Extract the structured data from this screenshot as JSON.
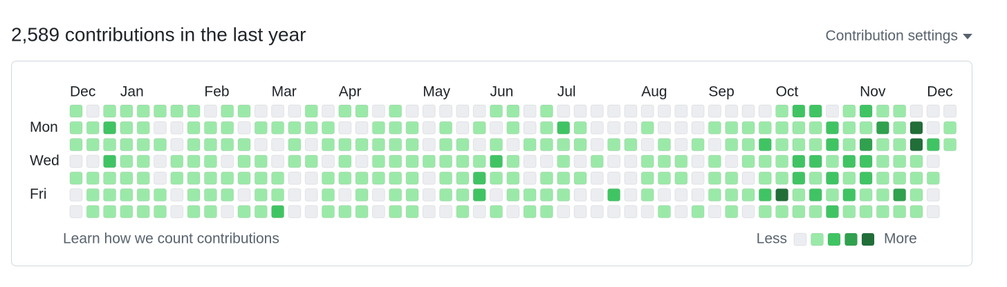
{
  "header": {
    "title": "2,589 contributions in the last year",
    "settings": "Contribution settings"
  },
  "months": [
    "Dec",
    "Jan",
    "Feb",
    "Mar",
    "Apr",
    "May",
    "Jun",
    "Jul",
    "Aug",
    "Sep",
    "Oct",
    "Nov",
    "Dec"
  ],
  "days": [
    "Mon",
    "Wed",
    "Fri"
  ],
  "colors": [
    "#ebedf0",
    "#9be9a8",
    "#40c463",
    "#30a14e",
    "#216e39"
  ],
  "grid": {
    "rows": [
      [
        1,
        0,
        1,
        1,
        1,
        1,
        1,
        1,
        0,
        1,
        1,
        0,
        0,
        0,
        1,
        0,
        1,
        1,
        0,
        1,
        0,
        0,
        0,
        0,
        0,
        1,
        1,
        0,
        1,
        0,
        0,
        0,
        0,
        0,
        0,
        0,
        0,
        0,
        0,
        0,
        0,
        0,
        1,
        2,
        2,
        0,
        1,
        2,
        1,
        1,
        0,
        0,
        0
      ],
      [
        1,
        1,
        2,
        1,
        1,
        0,
        0,
        1,
        1,
        1,
        0,
        1,
        1,
        1,
        1,
        1,
        0,
        0,
        1,
        1,
        1,
        0,
        1,
        0,
        1,
        0,
        1,
        0,
        1,
        2,
        1,
        0,
        0,
        0,
        1,
        0,
        0,
        0,
        1,
        1,
        1,
        1,
        1,
        1,
        1,
        2,
        1,
        1,
        3,
        1,
        4,
        0,
        1
      ],
      [
        1,
        1,
        1,
        1,
        1,
        1,
        0,
        1,
        1,
        1,
        1,
        0,
        0,
        1,
        0,
        1,
        1,
        1,
        1,
        1,
        1,
        0,
        1,
        1,
        0,
        1,
        0,
        1,
        1,
        1,
        1,
        0,
        1,
        1,
        0,
        1,
        0,
        1,
        0,
        1,
        1,
        2,
        1,
        1,
        1,
        2,
        1,
        3,
        1,
        1,
        4,
        2,
        1
      ],
      [
        0,
        0,
        2,
        1,
        1,
        0,
        1,
        1,
        1,
        0,
        1,
        1,
        0,
        1,
        1,
        0,
        1,
        0,
        1,
        1,
        1,
        1,
        1,
        1,
        1,
        2,
        1,
        0,
        0,
        1,
        0,
        1,
        0,
        0,
        1,
        1,
        1,
        0,
        1,
        0,
        1,
        1,
        1,
        2,
        2,
        1,
        2,
        2,
        1,
        1,
        1,
        0,
        null
      ],
      [
        1,
        1,
        1,
        1,
        1,
        0,
        1,
        1,
        1,
        1,
        1,
        1,
        1,
        0,
        0,
        1,
        1,
        1,
        1,
        1,
        1,
        0,
        1,
        1,
        2,
        1,
        1,
        0,
        1,
        1,
        1,
        0,
        0,
        0,
        1,
        1,
        1,
        0,
        1,
        1,
        0,
        1,
        1,
        2,
        1,
        2,
        1,
        2,
        1,
        1,
        1,
        1,
        null
      ],
      [
        0,
        1,
        1,
        1,
        1,
        1,
        0,
        1,
        1,
        1,
        0,
        1,
        1,
        0,
        0,
        1,
        0,
        1,
        0,
        1,
        1,
        0,
        1,
        1,
        2,
        0,
        1,
        1,
        1,
        1,
        0,
        0,
        2,
        0,
        1,
        0,
        0,
        0,
        1,
        1,
        1,
        2,
        4,
        1,
        2,
        1,
        2,
        1,
        1,
        3,
        1,
        0,
        null
      ],
      [
        0,
        1,
        1,
        1,
        1,
        1,
        0,
        1,
        1,
        0,
        1,
        1,
        2,
        0,
        0,
        1,
        1,
        1,
        0,
        1,
        1,
        0,
        0,
        1,
        0,
        1,
        0,
        1,
        1,
        0,
        0,
        0,
        0,
        0,
        0,
        1,
        0,
        1,
        0,
        1,
        0,
        1,
        1,
        1,
        1,
        2,
        1,
        1,
        1,
        1,
        1,
        0,
        null
      ]
    ]
  },
  "footer": {
    "link": "Learn how we count contributions",
    "less": "Less",
    "more": "More",
    "levels": [
      0,
      1,
      2,
      3,
      4
    ]
  }
}
